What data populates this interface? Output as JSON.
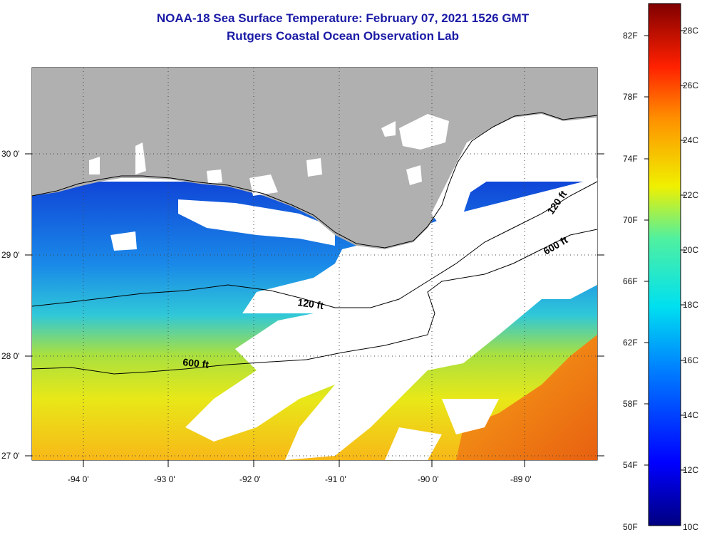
{
  "title": "NOAA-18 Sea Surface Temperature:  February 07, 2021 1526 GMT",
  "subtitle": "Rutgers Coastal Ocean Observation Lab",
  "lat_labels": [
    "30 0'",
    "29 0'",
    "28 0'",
    "27 0'"
  ],
  "lon_labels": [
    "-94 0'",
    "-93 0'",
    "-92 0'",
    "-91 0'",
    "-90 0'",
    "-89 0'"
  ],
  "contours": [
    {
      "label": "120 ft"
    },
    {
      "label": "600 ft"
    },
    {
      "label": "120 ft"
    },
    {
      "label": "600 ft"
    }
  ],
  "colorbar": {
    "f_labels": [
      "82F",
      "78F",
      "74F",
      "70F",
      "66F",
      "62F",
      "58F",
      "54F",
      "50F"
    ],
    "c_labels": [
      "28C",
      "26C",
      "24C",
      "22C",
      "20C",
      "18C",
      "16C",
      "14C",
      "12C",
      "10C"
    ]
  },
  "colors": {
    "title": "#1a1aa6",
    "land": "#b0b0b0",
    "cloud": "#ffffff",
    "cold": "#1060e0",
    "warm": "#f5c020"
  }
}
